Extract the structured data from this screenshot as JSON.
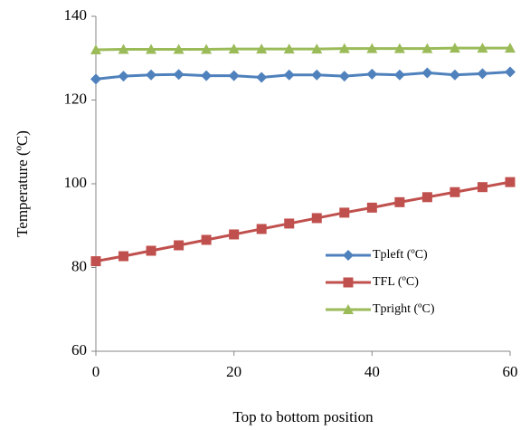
{
  "chart_data": {
    "type": "line",
    "xlabel": "Top to bottom position",
    "ylabel": "Temperature (ºC)",
    "x": [
      0,
      4,
      8,
      12,
      16,
      20,
      24,
      28,
      32,
      36,
      40,
      44,
      48,
      52,
      56,
      60
    ],
    "series": [
      {
        "name": "Tpleft (ºC)",
        "color": "#4f81bd",
        "marker": "diamond",
        "values": [
          125,
          125.7,
          126,
          126.1,
          125.8,
          125.8,
          125.4,
          126,
          126,
          125.7,
          126.2,
          126,
          126.5,
          126,
          126.3,
          126.7
        ]
      },
      {
        "name": "TFL (ºC)",
        "color": "#c0504d",
        "marker": "square",
        "values": [
          81.5,
          82.7,
          84,
          85.3,
          86.6,
          87.9,
          89.2,
          90.5,
          91.8,
          93.1,
          94.3,
          95.6,
          96.8,
          98,
          99.2,
          100.4
        ]
      },
      {
        "name": "Tpright (ºC)",
        "color": "#9bbb59",
        "marker": "triangle",
        "values": [
          132,
          132.1,
          132.1,
          132.1,
          132.1,
          132.2,
          132.2,
          132.2,
          132.2,
          132.3,
          132.3,
          132.3,
          132.3,
          132.4,
          132.4,
          132.4
        ]
      }
    ],
    "xlim": [
      0,
      60
    ],
    "xticks": [
      0,
      20,
      40,
      60
    ],
    "ylim": [
      60,
      140
    ],
    "yticks": [
      60,
      80,
      100,
      120,
      140
    ],
    "grid": false,
    "legend": "right"
  }
}
